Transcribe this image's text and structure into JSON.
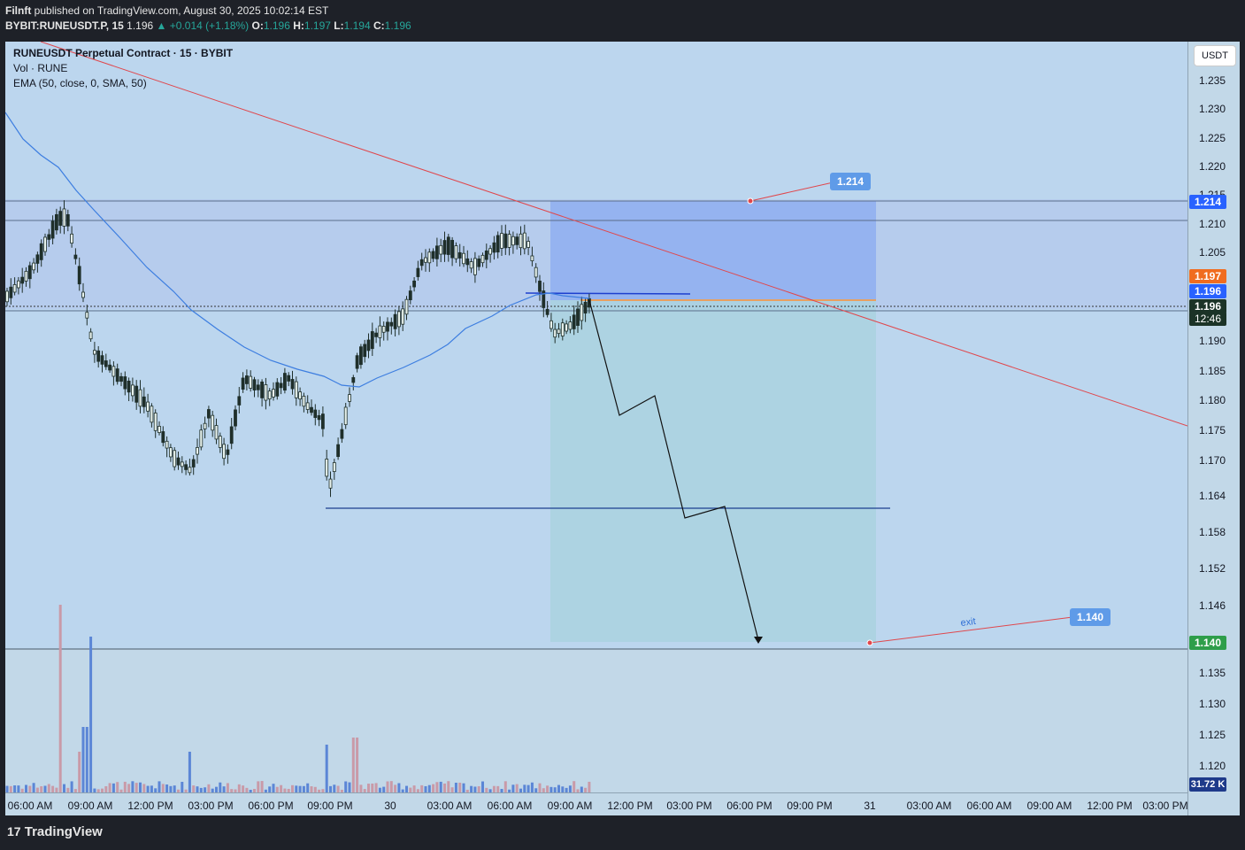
{
  "header": {
    "publisher": "Filnft",
    "published_text": "published on TradingView.com, August 30, 2025 10:02:14 EST",
    "symbol": "BYBIT:RUNEUSDT.P, 15",
    "last": "1.196",
    "change": "+0.014 (+1.18%)",
    "o_label": "O:",
    "o": "1.196",
    "h_label": "H:",
    "h": "1.197",
    "l_label": "L:",
    "l": "1.194",
    "c_label": "C:",
    "c": "1.196"
  },
  "legend": {
    "title": "RUNEUSDT Perpetual Contract · 15 · BYBIT",
    "vol": "Vol · RUNE",
    "ema": "EMA (50, close, 0, SMA, 50)"
  },
  "price_axis": {
    "currency": "USDT",
    "ticks": [
      "1.235",
      "1.230",
      "1.225",
      "1.220",
      "1.215",
      "1.210",
      "1.205",
      "1.190",
      "1.185",
      "1.180",
      "1.175",
      "1.170",
      "1.164",
      "1.158",
      "1.152",
      "1.146",
      "1.135",
      "1.130",
      "1.125",
      "1.120"
    ],
    "labels": {
      "target": "1.214",
      "high": "1.197",
      "ask": "1.196",
      "last": "1.196",
      "countdown": "12:46",
      "exit": "1.140",
      "volume": "31.72 K"
    }
  },
  "time_axis": [
    "06:00 AM",
    "09:00 AM",
    "12:00 PM",
    "03:00 PM",
    "06:00 PM",
    "09:00 PM",
    "30",
    "03:00 AM",
    "06:00 AM",
    "09:00 AM",
    "12:00 PM",
    "03:00 PM",
    "06:00 PM",
    "09:00 PM",
    "31",
    "03:00 AM",
    "06:00 AM",
    "09:00 AM",
    "12:00 PM",
    "03:00 PM"
  ],
  "annotations": {
    "stop_tag": "1.214",
    "exit_tag": "1.140",
    "exit_text": "exit"
  },
  "colors": {
    "background": "#c2d8e8",
    "zone": "#8eb3e9",
    "up": "#1f2f2a",
    "down": "#1f2f2a",
    "ema": "#3d7ee0",
    "trendline": "#e0474c",
    "stop_zone": "#7aa2f0",
    "target_zone": "#a9d2df",
    "brand": "#2962ff"
  },
  "footer": {
    "brand": "TradingView"
  }
}
